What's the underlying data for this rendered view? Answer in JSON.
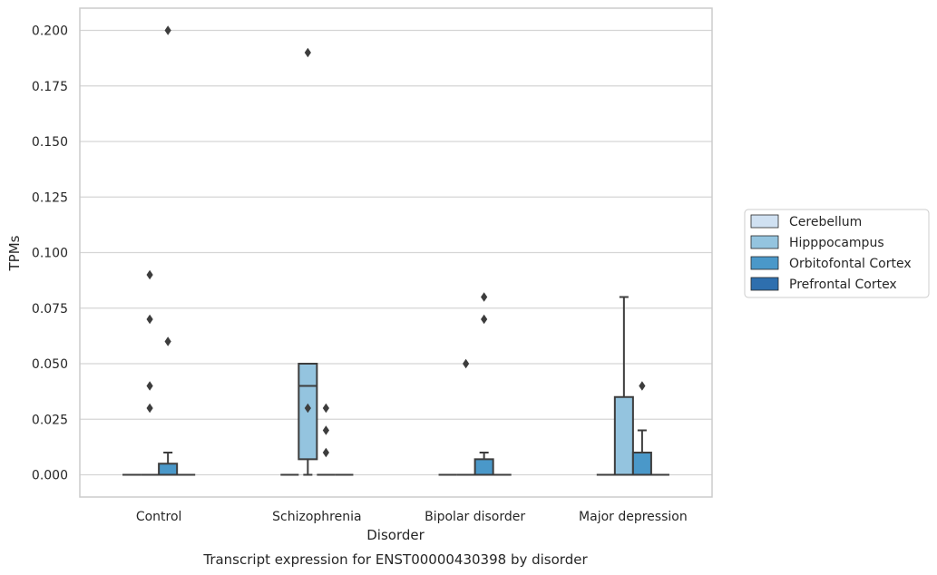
{
  "chart_data": {
    "type": "box",
    "xlabel": "Disorder",
    "ylabel": "TPMs",
    "caption": "Transcript expression for ENST00000430398 by disorder",
    "ylim": [
      -0.01,
      0.21
    ],
    "yticks": [
      "0.000",
      "0.025",
      "0.050",
      "0.075",
      "0.100",
      "0.125",
      "0.150",
      "0.175",
      "0.200"
    ],
    "grid": "horizontal",
    "legend_position": "right",
    "categories": [
      "Control",
      "Schizophrenia",
      "Bipolar disorder",
      "Major depression"
    ],
    "series": [
      {
        "name": "Cerebellum",
        "color": "#d0e1f2",
        "boxes": [
          {
            "q1": 0,
            "median": 0,
            "q3": 0,
            "whisker_low": 0,
            "whisker_high": 0,
            "outliers": []
          },
          {
            "q1": 0,
            "median": 0,
            "q3": 0,
            "whisker_low": 0,
            "whisker_high": 0,
            "outliers": []
          },
          {
            "q1": 0,
            "median": 0,
            "q3": 0,
            "whisker_low": 0,
            "whisker_high": 0,
            "outliers": []
          },
          {
            "q1": 0,
            "median": 0,
            "q3": 0,
            "whisker_low": 0,
            "whisker_high": 0,
            "outliers": []
          }
        ]
      },
      {
        "name": "Hipppocampus",
        "color": "#94c4df",
        "boxes": [
          {
            "q1": 0,
            "median": 0,
            "q3": 0,
            "whisker_low": 0,
            "whisker_high": 0,
            "outliers": [
              0.09,
              0.07,
              0.04,
              0.03
            ]
          },
          {
            "q1": 0.007,
            "median": 0.04,
            "q3": 0.05,
            "whisker_low": 0,
            "whisker_high": 0.05,
            "outliers": [
              0.19,
              0.03
            ]
          },
          {
            "q1": 0,
            "median": 0,
            "q3": 0,
            "whisker_low": 0,
            "whisker_high": 0,
            "outliers": [
              0.05
            ]
          },
          {
            "q1": 0,
            "median": 0,
            "q3": 0.035,
            "whisker_low": 0,
            "whisker_high": 0.08,
            "outliers": []
          }
        ]
      },
      {
        "name": "Orbitofontal Cortex",
        "color": "#4a98c9",
        "boxes": [
          {
            "q1": 0,
            "median": 0,
            "q3": 0.005,
            "whisker_low": 0,
            "whisker_high": 0.01,
            "outliers": [
              0.2,
              0.06
            ]
          },
          {
            "q1": 0,
            "median": 0,
            "q3": 0,
            "whisker_low": 0,
            "whisker_high": 0,
            "outliers": [
              0.03,
              0.02,
              0.01
            ]
          },
          {
            "q1": 0,
            "median": 0,
            "q3": 0.007,
            "whisker_low": 0,
            "whisker_high": 0.01,
            "outliers": [
              0.08,
              0.07
            ]
          },
          {
            "q1": 0,
            "median": 0,
            "q3": 0.01,
            "whisker_low": 0,
            "whisker_high": 0.02,
            "outliers": [
              0.04
            ]
          }
        ]
      },
      {
        "name": "Prefrontal Cortex",
        "color": "#2e6fae",
        "boxes": [
          {
            "q1": 0,
            "median": 0,
            "q3": 0,
            "whisker_low": 0,
            "whisker_high": 0,
            "outliers": []
          },
          {
            "q1": 0,
            "median": 0,
            "q3": 0,
            "whisker_low": 0,
            "whisker_high": 0,
            "outliers": []
          },
          {
            "q1": 0,
            "median": 0,
            "q3": 0,
            "whisker_low": 0,
            "whisker_high": 0,
            "outliers": []
          },
          {
            "q1": 0,
            "median": 0,
            "q3": 0,
            "whisker_low": 0,
            "whisker_high": 0,
            "outliers": []
          }
        ]
      }
    ],
    "colors": {
      "grid": "#d5d5d5",
      "frame": "#cccccc",
      "box_edge": "#3d3d3d",
      "text": "#262626"
    }
  }
}
